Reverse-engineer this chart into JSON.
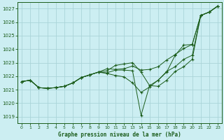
{
  "title": "Graphe pression niveau de la mer (hPa)",
  "bg_color": "#cceef2",
  "grid_color": "#aad4d8",
  "line_color": "#1a5c1a",
  "xlim": [
    -0.5,
    23.5
  ],
  "ylim": [
    1018.5,
    1027.5
  ],
  "yticks": [
    1019,
    1020,
    1021,
    1022,
    1023,
    1024,
    1025,
    1026,
    1027
  ],
  "xticks": [
    0,
    1,
    2,
    3,
    4,
    5,
    6,
    7,
    8,
    9,
    10,
    11,
    12,
    13,
    14,
    15,
    16,
    17,
    18,
    19,
    20,
    21,
    22,
    23
  ],
  "series": [
    [
      1021.6,
      1021.7,
      1021.15,
      1021.1,
      1021.15,
      1021.25,
      1021.5,
      1021.9,
      1022.1,
      1022.3,
      1022.55,
      1022.5,
      1022.55,
      1022.75,
      1022.45,
      1022.5,
      1022.7,
      1023.2,
      1023.6,
      1024.05,
      1024.35,
      1026.5,
      1026.75,
      1027.2
    ],
    [
      1021.6,
      1021.7,
      1021.15,
      1021.1,
      1021.15,
      1021.25,
      1021.5,
      1021.9,
      1022.1,
      1022.3,
      1022.2,
      1022.05,
      1021.95,
      1021.5,
      1020.8,
      1021.2,
      1021.7,
      1022.35,
      1022.7,
      1023.25,
      1023.55,
      1026.5,
      1026.75,
      1027.2
    ],
    [
      1021.6,
      1021.7,
      1021.15,
      1021.1,
      1021.15,
      1021.25,
      1021.5,
      1021.9,
      1022.1,
      1022.3,
      1022.4,
      1022.8,
      1022.9,
      1023.0,
      1022.3,
      1021.3,
      1021.25,
      1021.7,
      1022.35,
      1022.7,
      1023.25,
      1026.5,
      1026.75,
      1027.2
    ],
    [
      1021.6,
      1021.7,
      1021.15,
      1021.1,
      1021.15,
      1021.25,
      1021.5,
      1021.9,
      1022.1,
      1022.3,
      1022.25,
      1022.45,
      1022.45,
      1022.4,
      1019.1,
      1021.3,
      1021.7,
      1022.3,
      1023.55,
      1024.3,
      1024.35,
      1026.5,
      1026.75,
      1027.2
    ]
  ]
}
